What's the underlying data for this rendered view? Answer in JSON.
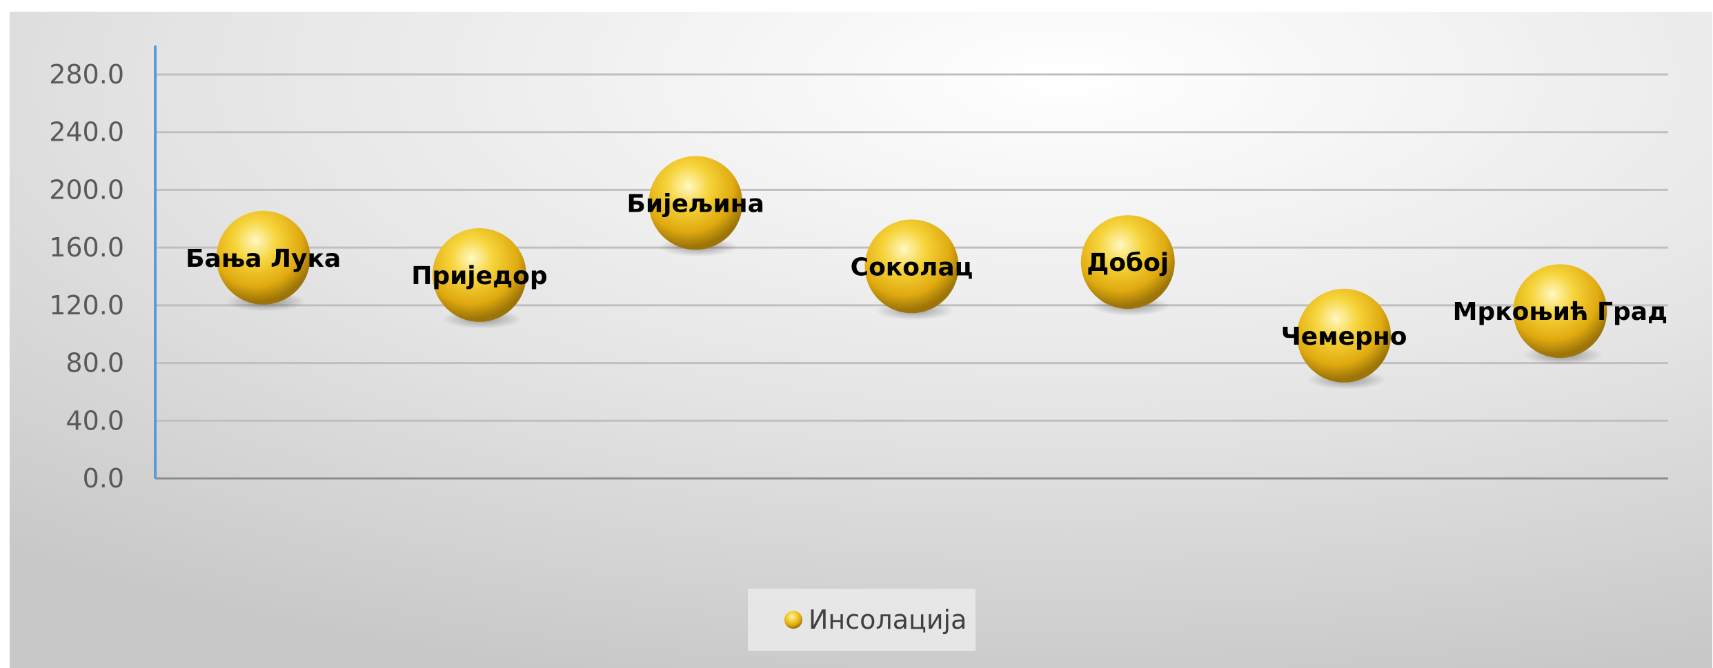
{
  "chart_data": {
    "type": "scatter",
    "title": "",
    "xlabel": "",
    "ylabel": "",
    "ylim": [
      0,
      280
    ],
    "y_ticks": [
      "0.0",
      "40.0",
      "80.0",
      "120.0",
      "160.0",
      "200.0",
      "240.0",
      "280.0"
    ],
    "x": [
      1,
      2,
      3,
      4,
      5,
      6,
      7
    ],
    "grid": true,
    "legend_position": "bottom",
    "series": [
      {
        "name": "Инсолација",
        "color": "#f2c31a",
        "values": [
          153,
          141,
          191,
          147,
          150,
          99,
          116
        ],
        "point_labels": [
          "Бања Лука",
          "Приједор",
          "Бијељина",
          "Соколац",
          "Добој",
          "Чемерно",
          "Мркоњић Град"
        ]
      }
    ]
  },
  "colors": {
    "axis": "#5b9bd5",
    "grid": "#bfbfbf",
    "background_center": "#ffffff",
    "background_edge": "#c9c9c9",
    "marker_highlight": "#fff8c2",
    "marker_mid": "#f2c31a",
    "marker_dark": "#9c7408"
  }
}
